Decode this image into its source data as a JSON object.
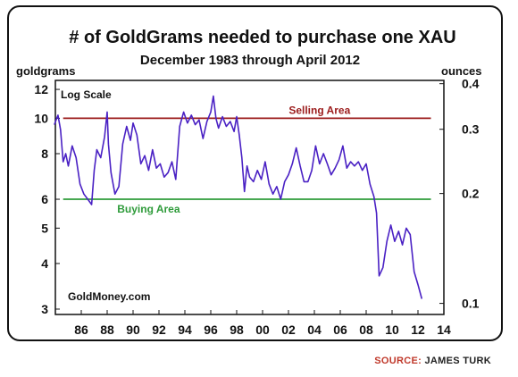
{
  "chart_data": {
    "type": "line",
    "title": "# of GoldGrams needed to purchase one XAU",
    "subtitle": "December 1983 through April 2012",
    "left_axis_label": "goldgrams",
    "right_axis_label": "ounces",
    "scale_note": "Log Scale",
    "watermark": "GoldMoney.com",
    "y_scale": "log",
    "ylim": [
      2.9,
      12.7
    ],
    "y_ticks": [
      3,
      4,
      5,
      6,
      8,
      10,
      12
    ],
    "right_ticks": [
      {
        "label": "0.4",
        "grams": 12.44
      },
      {
        "label": "0.3",
        "grams": 9.33
      },
      {
        "label": "0.2",
        "grams": 6.22
      },
      {
        "label": "0.1",
        "grams": 3.11
      }
    ],
    "xlim": [
      1984.0,
      2014.0
    ],
    "x_ticks": [
      {
        "label": "86",
        "year": 1986
      },
      {
        "label": "88",
        "year": 1988
      },
      {
        "label": "90",
        "year": 1990
      },
      {
        "label": "92",
        "year": 1992
      },
      {
        "label": "94",
        "year": 1994
      },
      {
        "label": "96",
        "year": 1996
      },
      {
        "label": "98",
        "year": 1998
      },
      {
        "label": "00",
        "year": 2000
      },
      {
        "label": "02",
        "year": 2002
      },
      {
        "label": "04",
        "year": 2004
      },
      {
        "label": "06",
        "year": 2006
      },
      {
        "label": "08",
        "year": 2008
      },
      {
        "label": "10",
        "year": 2010
      },
      {
        "label": "12",
        "year": 2012
      },
      {
        "label": "14",
        "year": 2014
      }
    ],
    "series": [
      {
        "color": "#4a21c4",
        "x": [
          1983.92,
          1984.2,
          1984.4,
          1984.6,
          1984.8,
          1985.0,
          1985.3,
          1985.6,
          1985.9,
          1986.2,
          1986.5,
          1986.8,
          1987.0,
          1987.2,
          1987.5,
          1987.8,
          1988.0,
          1988.1,
          1988.3,
          1988.6,
          1988.9,
          1989.2,
          1989.5,
          1989.8,
          1990.0,
          1990.3,
          1990.6,
          1990.9,
          1991.2,
          1991.5,
          1991.8,
          1992.1,
          1992.4,
          1992.7,
          1993.0,
          1993.3,
          1993.6,
          1993.9,
          1994.2,
          1994.5,
          1994.8,
          1995.1,
          1995.4,
          1995.7,
          1996.0,
          1996.2,
          1996.4,
          1996.6,
          1996.9,
          1997.2,
          1997.5,
          1997.8,
          1998.0,
          1998.2,
          1998.4,
          1998.6,
          1998.8,
          1999.0,
          1999.3,
          1999.6,
          1999.9,
          2000.2,
          2000.5,
          2000.8,
          2001.1,
          2001.4,
          2001.7,
          2002.0,
          2002.3,
          2002.6,
          2002.9,
          2003.2,
          2003.5,
          2003.8,
          2004.1,
          2004.4,
          2004.7,
          2005.0,
          2005.3,
          2005.6,
          2005.9,
          2006.2,
          2006.5,
          2006.8,
          2007.1,
          2007.4,
          2007.7,
          2008.0,
          2008.3,
          2008.6,
          2008.8,
          2009.0,
          2009.3,
          2009.6,
          2009.9,
          2010.2,
          2010.5,
          2010.8,
          2011.1,
          2011.4,
          2011.7,
          2012.0,
          2012.3
        ],
        "y": [
          9.6,
          10.2,
          9.3,
          7.6,
          8.0,
          7.4,
          8.4,
          7.8,
          6.6,
          6.2,
          6.0,
          5.8,
          7.2,
          8.2,
          7.8,
          8.9,
          10.4,
          8.5,
          7.1,
          6.2,
          6.5,
          8.5,
          9.5,
          8.7,
          9.7,
          9.0,
          7.5,
          7.9,
          7.2,
          8.2,
          7.3,
          7.5,
          6.9,
          7.1,
          7.6,
          6.8,
          9.5,
          10.4,
          9.7,
          10.2,
          9.6,
          9.9,
          8.8,
          9.8,
          10.4,
          11.5,
          10.0,
          9.4,
          10.1,
          9.5,
          9.8,
          9.2,
          10.1,
          9.0,
          7.8,
          6.3,
          7.4,
          6.9,
          6.7,
          7.2,
          6.8,
          7.6,
          6.6,
          6.2,
          6.5,
          6.0,
          6.7,
          7.0,
          7.5,
          8.3,
          7.4,
          6.7,
          6.7,
          7.2,
          8.4,
          7.5,
          8.0,
          7.5,
          7.0,
          7.3,
          7.7,
          8.4,
          7.3,
          7.6,
          7.4,
          7.6,
          7.2,
          7.5,
          6.6,
          6.1,
          5.5,
          3.7,
          3.9,
          4.6,
          5.1,
          4.6,
          4.9,
          4.5,
          5.0,
          4.8,
          3.8,
          3.5,
          3.2
        ]
      }
    ],
    "reference_lines": [
      {
        "label": "Selling Area",
        "value": 10,
        "color": "#9b1b1b"
      },
      {
        "label": "Buying Area",
        "value": 6,
        "color": "#2e9b3a"
      }
    ]
  },
  "source": {
    "key": "SOURCE:",
    "value": "JAMES TURK"
  }
}
